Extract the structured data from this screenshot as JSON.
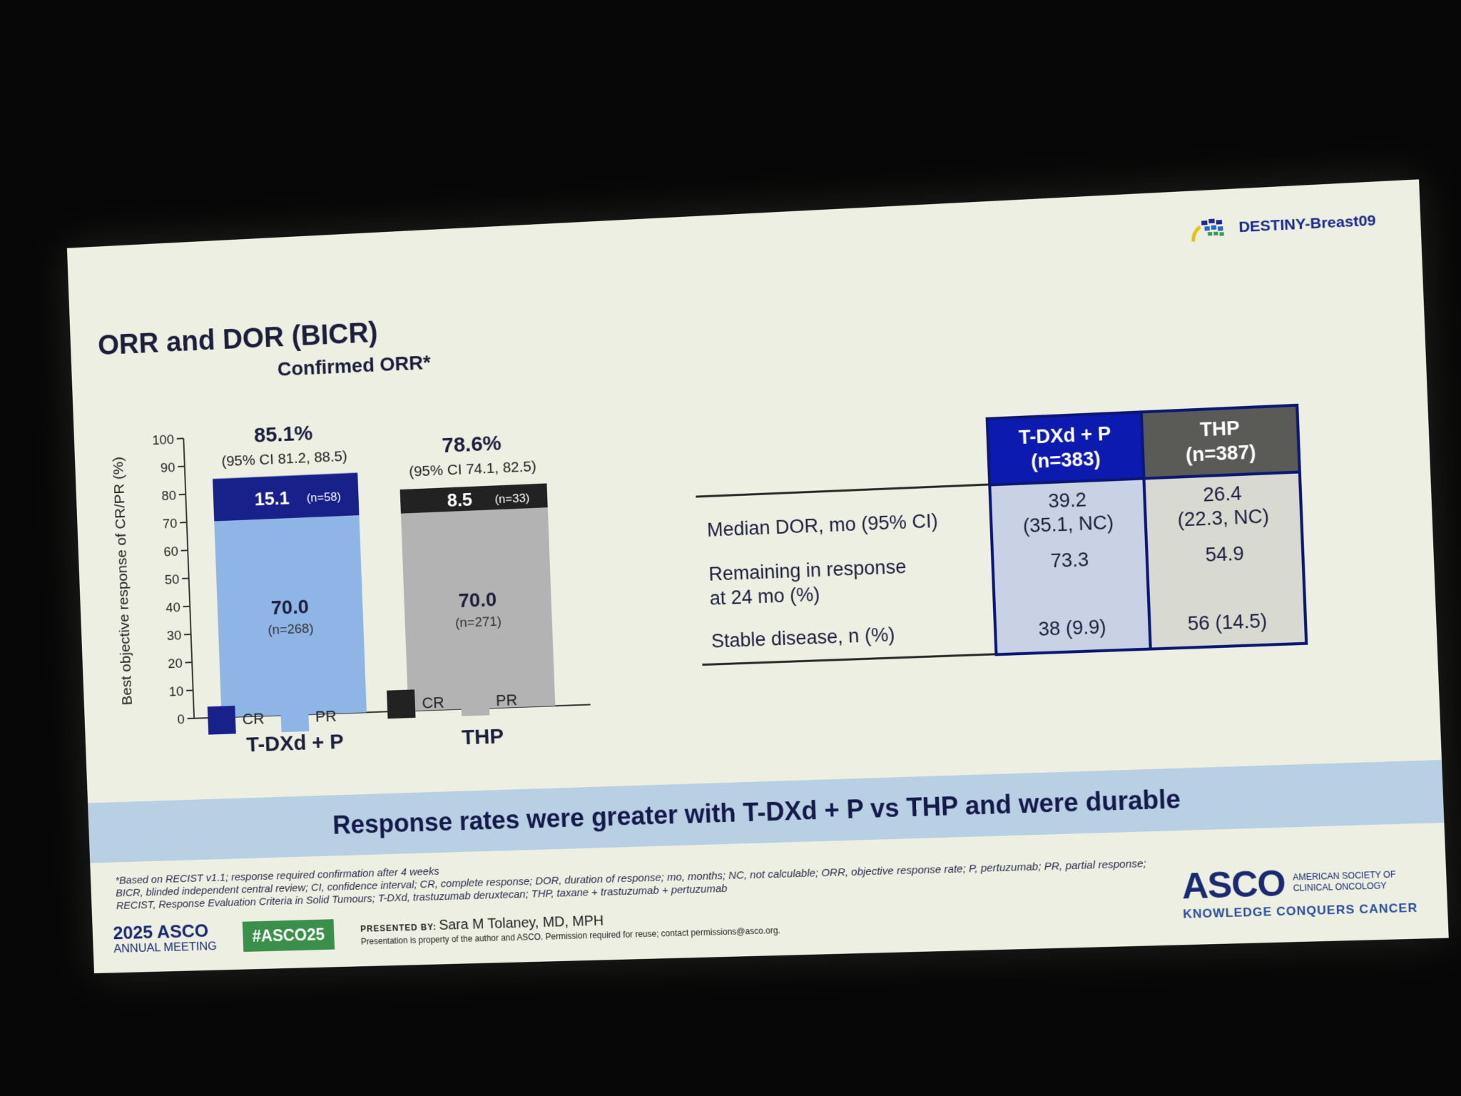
{
  "logo": {
    "text": "DESTINY-Breast09"
  },
  "title": "ORR and DOR (BICR)",
  "subtitle": "Confirmed ORR*",
  "colors": {
    "tdxd_cr": "#18208a",
    "tdxd_pr": "#8fb4e6",
    "thp_cr": "#222222",
    "thp_pr": "#b3b3b3",
    "header_tdxd": "#0c1ab0",
    "header_thp": "#5a5a56"
  },
  "chart_data": {
    "type": "bar",
    "stacked": true,
    "ylabel": "Best objective response of CR/PR (%)",
    "ylim": [
      0,
      100
    ],
    "yticks": [
      0,
      10,
      20,
      30,
      40,
      50,
      60,
      70,
      80,
      90,
      100
    ],
    "categories": [
      "T-DXd + P",
      "THP"
    ],
    "series": [
      {
        "name": "PR",
        "values": [
          70.0,
          70.0
        ],
        "labels": [
          "70.0",
          "70.0"
        ],
        "n_labels": [
          "(n=268)",
          "(n=271)"
        ]
      },
      {
        "name": "CR",
        "values": [
          15.1,
          8.5
        ],
        "labels": [
          "15.1",
          "8.5"
        ],
        "n_labels": [
          "(n=58)",
          "(n=33)"
        ]
      }
    ],
    "totals": [
      "85.1%",
      "78.6%"
    ],
    "ci_labels": [
      "(95% CI 81.2, 88.5)",
      "(95% CI 74.1, 82.5)"
    ],
    "legend": [
      {
        "group": "T-DXd + P",
        "items": [
          "CR",
          "PR"
        ]
      },
      {
        "group": "THP",
        "items": [
          "CR",
          "PR"
        ]
      }
    ]
  },
  "table": {
    "headers": [
      {
        "line1": "T-DXd + P",
        "line2": "(n=383)"
      },
      {
        "line1": "THP",
        "line2": "(n=387)"
      }
    ],
    "rows": [
      {
        "label": "Median DOR, mo (95% CI)",
        "v1a": "39.2",
        "v1b": "(35.1, NC)",
        "v2a": "26.4",
        "v2b": "(22.3, NC)"
      },
      {
        "label_a": "Remaining in response",
        "label_b": "at 24 mo (%)",
        "v1": "73.3",
        "v2": "54.9"
      },
      {
        "label": "Stable disease, n (%)",
        "v1": "38 (9.9)",
        "v2": "56 (14.5)"
      }
    ]
  },
  "banner": "Response rates were greater with T-DXd + P vs THP and were durable",
  "footnotes": [
    "*Based on RECIST v1.1; response required confirmation after 4 weeks",
    "BICR, blinded independent central review; CI, confidence interval; CR, complete response; DOR, duration of response; mo, months; NC, not calculable; ORR, objective response rate; P, pertuzumab; PR, partial response;",
    "RECIST, Response Evaluation Criteria in Solid Tumours; T-DXd, trastuzumab deruxtecan; THP, taxane + trastuzumab + pertuzumab"
  ],
  "footer": {
    "year": "2025",
    "asco": "ASCO",
    "meeting": "ANNUAL MEETING",
    "hashtag": "#ASCO25",
    "presented_by_label": "PRESENTED BY:",
    "presenter": "Sara M Tolaney, MD, MPH",
    "property_note": "Presentation is property of the author and ASCO. Permission required for reuse; contact permissions@asco.org.",
    "asco_right": "ASCO",
    "society_line1": "AMERICAN SOCIETY OF",
    "society_line2": "CLINICAL ONCOLOGY",
    "tagline": "KNOWLEDGE CONQUERS CANCER"
  }
}
